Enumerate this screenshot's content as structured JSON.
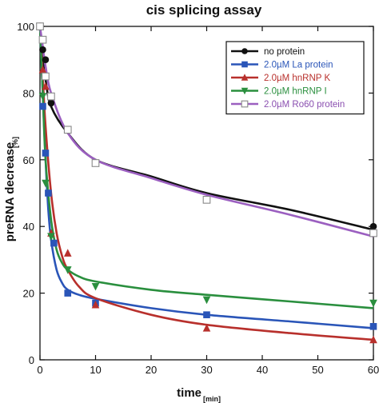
{
  "chart_data": {
    "type": "line",
    "title": "cis splicing assay",
    "xlabel": "time",
    "xlabel_unit": "[min]",
    "ylabel": "preRNA decrease",
    "ylabel_unit": "[%]",
    "xlim": [
      0,
      60
    ],
    "ylim": [
      0,
      100
    ],
    "xticks": [
      "0",
      "10",
      "20",
      "30",
      "40",
      "50",
      "60"
    ],
    "yticks": [
      "0",
      "20",
      "40",
      "60",
      "80",
      "100"
    ],
    "grid": false,
    "legend_position": "top-right",
    "series": [
      {
        "name": "no protein",
        "color": "#111111",
        "marker": "circle",
        "points": [
          [
            0,
            100
          ],
          [
            0.5,
            93
          ],
          [
            1,
            90
          ],
          [
            2,
            77
          ],
          [
            5,
            69
          ],
          [
            10,
            59
          ],
          [
            30,
            48
          ],
          [
            60,
            40
          ]
        ],
        "fit": [
          [
            0,
            100
          ],
          [
            0.5,
            90
          ],
          [
            1,
            84
          ],
          [
            2,
            76
          ],
          [
            5,
            68
          ],
          [
            10,
            60
          ],
          [
            20,
            55
          ],
          [
            30,
            50
          ],
          [
            45,
            45
          ],
          [
            60,
            39
          ]
        ]
      },
      {
        "name": "2.0µM La protein",
        "color": "#2a55b8",
        "marker": "square",
        "points": [
          [
            0,
            100
          ],
          [
            0.5,
            76
          ],
          [
            1,
            62
          ],
          [
            1.5,
            50
          ],
          [
            2.5,
            35
          ],
          [
            5,
            20
          ],
          [
            10,
            17
          ],
          [
            30,
            13.5
          ],
          [
            60,
            10
          ]
        ],
        "fit": [
          [
            0,
            100
          ],
          [
            0.5,
            80
          ],
          [
            1,
            60
          ],
          [
            1.5,
            45
          ],
          [
            2,
            36
          ],
          [
            3,
            27
          ],
          [
            4,
            23
          ],
          [
            5,
            21
          ],
          [
            7,
            19.5
          ],
          [
            10,
            18.3
          ],
          [
            20,
            15.5
          ],
          [
            30,
            13.5
          ],
          [
            45,
            11.5
          ],
          [
            60,
            9.5
          ]
        ]
      },
      {
        "name": "2.0µM hnRNP K",
        "color": "#b8302c",
        "marker": "triangle-up",
        "points": [
          [
            0,
            100
          ],
          [
            0.5,
            87
          ],
          [
            1,
            82
          ],
          [
            2,
            38
          ],
          [
            5,
            32
          ],
          [
            10,
            16.5
          ],
          [
            30,
            9.5
          ],
          [
            60,
            6
          ]
        ],
        "fit": [
          [
            0,
            100
          ],
          [
            0.5,
            85
          ],
          [
            1,
            70
          ],
          [
            2,
            50
          ],
          [
            3,
            38
          ],
          [
            4,
            31
          ],
          [
            5,
            27
          ],
          [
            7,
            22
          ],
          [
            10,
            18.5
          ],
          [
            20,
            13.5
          ],
          [
            30,
            10.5
          ],
          [
            45,
            8
          ],
          [
            60,
            6
          ]
        ]
      },
      {
        "name": "2.0µM hnRNP I",
        "color": "#2a8f3e",
        "marker": "triangle-down",
        "points": [
          [
            0,
            100
          ],
          [
            0.5,
            79
          ],
          [
            1,
            53
          ],
          [
            2,
            37
          ],
          [
            5,
            27
          ],
          [
            10,
            22
          ],
          [
            30,
            18
          ],
          [
            60,
            17
          ]
        ],
        "fit": [
          [
            0,
            100
          ],
          [
            0.5,
            80
          ],
          [
            1,
            60
          ],
          [
            2,
            42
          ],
          [
            3,
            33
          ],
          [
            4,
            29
          ],
          [
            5,
            27
          ],
          [
            7,
            25
          ],
          [
            10,
            23.5
          ],
          [
            20,
            21
          ],
          [
            30,
            19.5
          ],
          [
            45,
            17.5
          ],
          [
            60,
            15.5
          ]
        ]
      },
      {
        "name": "2.0µM Ro60 protein",
        "color": "#9b5fc0",
        "marker": "square-open",
        "points": [
          [
            0,
            100
          ],
          [
            0.5,
            96
          ],
          [
            1,
            85
          ],
          [
            2,
            79
          ],
          [
            5,
            69
          ],
          [
            10,
            59
          ],
          [
            30,
            48
          ],
          [
            60,
            38
          ]
        ],
        "fit": [
          [
            0,
            100
          ],
          [
            0.5,
            94
          ],
          [
            1,
            88
          ],
          [
            2,
            80
          ],
          [
            5,
            68
          ],
          [
            10,
            60
          ],
          [
            20,
            54.5
          ],
          [
            30,
            49.5
          ],
          [
            45,
            43.5
          ],
          [
            60,
            37
          ]
        ]
      }
    ]
  }
}
